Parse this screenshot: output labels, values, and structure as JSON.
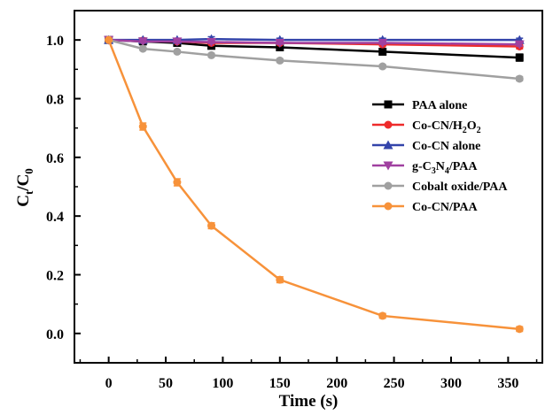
{
  "chart_data": {
    "type": "line",
    "title": "",
    "xlabel": "Time (s)",
    "ylabel": {
      "main": "C",
      "sub1": "t",
      "mid": "/C",
      "sub2": "0"
    },
    "xlim": [
      -30,
      380
    ],
    "ylim": [
      -0.1,
      1.1
    ],
    "xticks": [
      "0",
      "50",
      "100",
      "150",
      "200",
      "250",
      "300",
      "350"
    ],
    "yticks": [
      "0.0",
      "0.2",
      "0.4",
      "0.6",
      "0.8",
      "1.0"
    ],
    "legend_position": "right",
    "series": [
      {
        "name": "PAA alone",
        "legend": {
          "pre": "PAA alone"
        },
        "color": "#000000",
        "marker": "square",
        "x": [
          0,
          30,
          60,
          90,
          150,
          240,
          360
        ],
        "y": [
          1.0,
          0.995,
          0.99,
          0.98,
          0.975,
          0.96,
          0.94
        ],
        "err": [
          0.0,
          0.005,
          0.007,
          0.01,
          0.008,
          0.01,
          0.012
        ]
      },
      {
        "name": "Co-CN/H2O2",
        "legend": {
          "pre": "Co-CN/H",
          "sub1": "2",
          "mid": "O",
          "sub2": "2"
        },
        "color": "#ee2b2b",
        "marker": "circle",
        "x": [
          0,
          30,
          60,
          90,
          150,
          240,
          360
        ],
        "y": [
          1.0,
          0.998,
          0.995,
          0.99,
          0.99,
          0.985,
          0.978
        ],
        "err": [
          0.0,
          0.004,
          0.005,
          0.006,
          0.005,
          0.006,
          0.008
        ]
      },
      {
        "name": "Co-CN alone",
        "legend": {
          "pre": "Co-CN alone"
        },
        "color": "#3344aa",
        "marker": "triangle",
        "x": [
          0,
          30,
          60,
          90,
          150,
          240,
          360
        ],
        "y": [
          1.0,
          1.0,
          1.0,
          1.003,
          1.0,
          1.0,
          1.0
        ],
        "err": [
          0.0,
          0.004,
          0.005,
          0.008,
          0.006,
          0.006,
          0.006
        ]
      },
      {
        "name": "g-C3N4/PAA",
        "legend": {
          "pre": "g-C",
          "sub1": "3",
          "mid": "N",
          "sub2": "4",
          "post": "/PAA"
        },
        "color": "#a040a0",
        "marker": "triangle-down",
        "x": [
          0,
          30,
          60,
          90,
          150,
          240,
          360
        ],
        "y": [
          1.0,
          0.995,
          0.995,
          0.993,
          0.99,
          0.99,
          0.985
        ],
        "err": [
          0.0,
          0.004,
          0.004,
          0.005,
          0.005,
          0.005,
          0.006
        ]
      },
      {
        "name": "Cobalt oxide/PAA",
        "legend": {
          "pre": "Cobalt oxide/PAA"
        },
        "color": "#a0a0a0",
        "marker": "circle",
        "x": [
          0,
          30,
          60,
          90,
          150,
          240,
          360
        ],
        "y": [
          1.0,
          0.97,
          0.96,
          0.948,
          0.93,
          0.91,
          0.868
        ],
        "err": [
          0.0,
          0.005,
          0.005,
          0.006,
          0.006,
          0.006,
          0.007
        ]
      },
      {
        "name": "Co-CN/PAA",
        "legend": {
          "pre": "Co-CN/PAA"
        },
        "color": "#f7923a",
        "marker": "circle",
        "x": [
          0,
          30,
          60,
          90,
          150,
          240,
          360
        ],
        "y": [
          1.0,
          0.705,
          0.515,
          0.367,
          0.183,
          0.06,
          0.015
        ],
        "err": [
          0.0,
          0.012,
          0.012,
          0.01,
          0.01,
          0.008,
          0.008
        ]
      }
    ]
  }
}
